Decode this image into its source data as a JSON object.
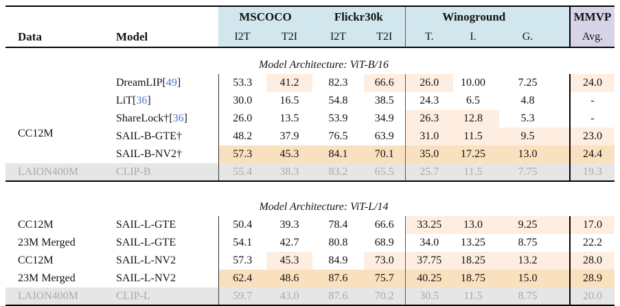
{
  "colors": {
    "header_blue": "#d2e6ee",
    "header_lavender": "#d7d4e9",
    "highlight_light": "#fdeee1",
    "highlight_strong": "#f9e1bf",
    "baseline_gray_bg": "#e6e6e6",
    "baseline_gray_text": "#aaaaaa",
    "citation_blue": "#4575c4"
  },
  "header": {
    "data_label": "Data",
    "model_label": "Model",
    "groups": [
      {
        "label": "MSCOCO",
        "subcols": [
          "I2T",
          "T2I"
        ]
      },
      {
        "label": "Flickr30k",
        "subcols": [
          "I2T",
          "T2I"
        ]
      },
      {
        "label": "Winoground",
        "subcols": [
          "T.",
          "I.",
          "G."
        ]
      },
      {
        "label": "MMVP",
        "subcols": [
          "Avg."
        ]
      }
    ]
  },
  "sections": [
    {
      "title": "Model Architecture: ViT-B/16",
      "rows": [
        {
          "data": "CC12M",
          "data_rowspan": 5,
          "model": "DreamLIP",
          "cite": "49",
          "values": [
            "53.3",
            "41.2",
            "82.3",
            "66.6",
            "26.0",
            "10.00",
            "7.25",
            "24.0"
          ],
          "highlight": [
            0,
            1,
            0,
            1,
            1,
            0,
            0,
            1
          ],
          "style": "normal"
        },
        {
          "model": "LiT",
          "cite": "36",
          "values": [
            "30.0",
            "16.5",
            "54.8",
            "38.5",
            "24.3",
            "6.5",
            "4.8",
            "-"
          ],
          "highlight": [
            0,
            0,
            0,
            0,
            0,
            0,
            0,
            0
          ],
          "style": "normal"
        },
        {
          "model": "ShareLock†",
          "cite": "36",
          "values": [
            "26.0",
            "13.5",
            "53.9",
            "34.9",
            "26.3",
            "12.8",
            "5.3",
            "-"
          ],
          "highlight": [
            0,
            0,
            0,
            0,
            1,
            1,
            0,
            0
          ],
          "style": "normal"
        },
        {
          "model": "SAIL-B-GTE†",
          "values": [
            "48.2",
            "37.9",
            "76.5",
            "63.9",
            "31.0",
            "11.5",
            "9.5",
            "23.0"
          ],
          "highlight": [
            0,
            0,
            0,
            0,
            1,
            1,
            1,
            1
          ],
          "style": "normal"
        },
        {
          "model": "SAIL-B-NV2†",
          "values": [
            "57.3",
            "45.3",
            "84.1",
            "70.1",
            "35.0",
            "17.25",
            "13.0",
            "24.4"
          ],
          "highlight": [
            0,
            0,
            0,
            0,
            0,
            0,
            0,
            0
          ],
          "style": "best"
        },
        {
          "data": "LAION400M",
          "model": "CLIP-B",
          "values": [
            "55.4",
            "38.3",
            "83.2",
            "65.5",
            "25.7",
            "11.5",
            "7.75",
            "19.3"
          ],
          "highlight": [
            0,
            0,
            0,
            0,
            0,
            0,
            0,
            0
          ],
          "style": "baseline"
        }
      ]
    },
    {
      "title": "Model Architecture: ViT-L/14",
      "rows": [
        {
          "data": "CC12M",
          "model": "SAIL-L-GTE",
          "values": [
            "50.4",
            "39.3",
            "78.4",
            "66.6",
            "33.25",
            "13.0",
            "9.25",
            "17.0"
          ],
          "highlight": [
            0,
            0,
            0,
            0,
            1,
            1,
            1,
            1
          ],
          "style": "normal"
        },
        {
          "data": "23M Merged",
          "model": "SAIL-L-GTE",
          "values": [
            "54.1",
            "42.7",
            "80.8",
            "68.9",
            "34.0",
            "13.25",
            "8.75",
            "22.2"
          ],
          "highlight": [
            0,
            0,
            0,
            0,
            0,
            0,
            0,
            0
          ],
          "style": "normal"
        },
        {
          "data": "CC12M",
          "model": "SAIL-L-NV2",
          "values": [
            "57.3",
            "45.3",
            "84.9",
            "73.0",
            "37.75",
            "18.25",
            "13.2",
            "28.0"
          ],
          "highlight": [
            0,
            1,
            0,
            1,
            1,
            1,
            1,
            1
          ],
          "style": "normal"
        },
        {
          "data": "23M Merged",
          "model": "SAIL-L-NV2",
          "values": [
            "62.4",
            "48.6",
            "87.6",
            "75.7",
            "40.25",
            "18.75",
            "15.0",
            "28.9"
          ],
          "highlight": [
            0,
            0,
            0,
            0,
            0,
            0,
            0,
            0
          ],
          "style": "best"
        },
        {
          "data": "LAION400M",
          "model": "CLIP-L",
          "values": [
            "59.7",
            "43.0",
            "87.6",
            "70.2",
            "30.5",
            "11.5",
            "8.75",
            "20.0"
          ],
          "highlight": [
            0,
            0,
            0,
            0,
            0,
            0,
            0,
            0
          ],
          "style": "baseline"
        }
      ]
    }
  ]
}
